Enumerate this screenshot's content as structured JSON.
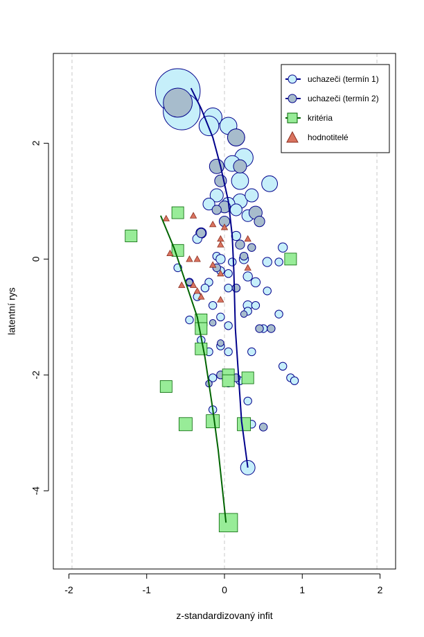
{
  "chart_data": {
    "type": "scatter",
    "title": "",
    "xlabel": "z-standardizovaný infit",
    "ylabel": "latentní rys",
    "xlim": [
      -2.2,
      2.2
    ],
    "ylim": [
      -5.35,
      3.55
    ],
    "xticks": [
      "-2",
      "-1",
      "0",
      "1",
      "2"
    ],
    "yticks": [
      "-4",
      "-2",
      "0",
      "2"
    ],
    "reference_lines_x": [
      -1.96,
      0,
      1.96
    ],
    "legend_position": "top-right",
    "legend": [
      {
        "label": "uchazeči (termín 1)",
        "symbol": "circle-line",
        "fill": "#c6effa",
        "stroke": "#00008b"
      },
      {
        "label": "uchazeči (termín 2)",
        "symbol": "circle-line",
        "fill": "#a7bccc",
        "stroke": "#00008b"
      },
      {
        "label": "kritéria",
        "symbol": "square-line",
        "fill": "#98ec98",
        "stroke": "#006400"
      },
      {
        "label": "hodnotitelé",
        "symbol": "triangle",
        "fill": "#d9735f",
        "stroke": "#8b2e1f"
      }
    ],
    "series": [
      {
        "name": "uchazeči (termín 1)",
        "color": "#c6effa",
        "edge": "#00008b",
        "points": [
          [
            -0.6,
            2.9,
            3.4
          ],
          [
            -0.55,
            2.55,
            2.8
          ],
          [
            -0.15,
            2.45,
            1.4
          ],
          [
            0.05,
            2.3,
            1.3
          ],
          [
            -0.2,
            2.3,
            1.5
          ],
          [
            0.15,
            2.1,
            1.3
          ],
          [
            0.25,
            1.75,
            1.4
          ],
          [
            0.1,
            1.65,
            1.2
          ],
          [
            0.2,
            1.35,
            1.3
          ],
          [
            0.58,
            1.3,
            1.2
          ],
          [
            -0.1,
            1.1,
            1.0
          ],
          [
            0.2,
            1.0,
            1.1
          ],
          [
            0.35,
            1.1,
            1.0
          ],
          [
            0.05,
            0.95,
            1.0
          ],
          [
            -0.2,
            0.95,
            0.9
          ],
          [
            0.15,
            0.85,
            0.9
          ],
          [
            0.3,
            0.75,
            0.9
          ],
          [
            -0.3,
            0.45,
            0.8
          ],
          [
            0.15,
            0.4,
            0.7
          ],
          [
            -0.35,
            0.35,
            0.7
          ],
          [
            0.75,
            0.2,
            0.7
          ],
          [
            -0.1,
            0.05,
            0.6
          ],
          [
            -0.05,
            0.0,
            0.7
          ],
          [
            0.25,
            0.0,
            0.7
          ],
          [
            0.55,
            -0.05,
            0.7
          ],
          [
            0.1,
            -0.05,
            0.6
          ],
          [
            0.7,
            -0.05,
            0.6
          ],
          [
            -0.05,
            -0.2,
            0.6
          ],
          [
            0.05,
            -0.25,
            0.6
          ],
          [
            -0.6,
            -0.15,
            0.6
          ],
          [
            0.3,
            -0.3,
            0.7
          ],
          [
            0.4,
            -0.4,
            0.7
          ],
          [
            -0.45,
            -0.4,
            0.6
          ],
          [
            -0.2,
            -0.4,
            0.6
          ],
          [
            0.05,
            -0.5,
            0.6
          ],
          [
            -0.25,
            -0.5,
            0.6
          ],
          [
            0.15,
            -0.5,
            0.6
          ],
          [
            0.55,
            -0.55,
            0.6
          ],
          [
            -0.35,
            -0.65,
            0.6
          ],
          [
            0.3,
            -0.8,
            0.7
          ],
          [
            0.4,
            -0.8,
            0.6
          ],
          [
            -0.15,
            -0.8,
            0.6
          ],
          [
            0.3,
            -0.9,
            0.6
          ],
          [
            0.7,
            -0.95,
            0.6
          ],
          [
            -0.05,
            -1.0,
            0.6
          ],
          [
            -0.45,
            -1.05,
            0.6
          ],
          [
            0.05,
            -1.15,
            0.6
          ],
          [
            0.5,
            -1.2,
            0.6
          ],
          [
            -0.3,
            -1.4,
            0.6
          ],
          [
            -0.05,
            -1.5,
            0.6
          ],
          [
            -0.2,
            -1.6,
            0.6
          ],
          [
            0.05,
            -1.6,
            0.6
          ],
          [
            0.35,
            -1.6,
            0.6
          ],
          [
            0.75,
            -1.85,
            0.6
          ],
          [
            0.85,
            -2.05,
            0.6
          ],
          [
            0.9,
            -2.1,
            0.6
          ],
          [
            -0.15,
            -2.05,
            0.6
          ],
          [
            0.2,
            -2.1,
            0.6
          ],
          [
            0.3,
            -2.45,
            0.6
          ],
          [
            -0.15,
            -2.6,
            0.6
          ],
          [
            0.35,
            -2.85,
            0.6
          ],
          [
            0.3,
            -3.6,
            1.1
          ]
        ]
      },
      {
        "name": "uchazeči (termín 2)",
        "color": "#a7bccc",
        "edge": "#00008b",
        "points": [
          [
            -0.6,
            2.7,
            2.2
          ],
          [
            0.15,
            2.1,
            1.3
          ],
          [
            -0.1,
            1.6,
            1.1
          ],
          [
            0.2,
            1.6,
            1.0
          ],
          [
            -0.05,
            1.35,
            0.9
          ],
          [
            0.0,
            0.9,
            0.9
          ],
          [
            0.4,
            0.8,
            1.0
          ],
          [
            -0.1,
            0.85,
            0.7
          ],
          [
            0.0,
            0.65,
            0.8
          ],
          [
            0.45,
            0.65,
            0.8
          ],
          [
            -0.3,
            0.45,
            0.7
          ],
          [
            0.2,
            0.25,
            0.7
          ],
          [
            0.35,
            0.2,
            0.6
          ],
          [
            0.25,
            0.05,
            0.6
          ],
          [
            -0.1,
            -0.15,
            0.6
          ],
          [
            0.15,
            -0.5,
            0.6
          ],
          [
            -0.45,
            -0.4,
            0.5
          ],
          [
            0.25,
            -0.95,
            0.5
          ],
          [
            0.45,
            -1.2,
            0.6
          ],
          [
            0.6,
            -1.2,
            0.6
          ],
          [
            -0.15,
            -1.1,
            0.5
          ],
          [
            -0.05,
            -1.45,
            0.5
          ],
          [
            -0.05,
            -2.0,
            0.6
          ],
          [
            0.15,
            -2.05,
            0.6
          ],
          [
            -0.2,
            -2.15,
            0.5
          ],
          [
            0.05,
            -2.15,
            0.5
          ],
          [
            0.5,
            -2.9,
            0.6
          ]
        ]
      },
      {
        "name": "kritéria",
        "color": "#98ec98",
        "edge": "#006400",
        "points": [
          [
            -0.6,
            0.8,
            0.9
          ],
          [
            -1.2,
            0.4,
            0.9
          ],
          [
            -0.6,
            0.15,
            0.9
          ],
          [
            0.85,
            0.0,
            0.9
          ],
          [
            -0.3,
            -1.05,
            0.9
          ],
          [
            -0.3,
            -1.2,
            0.9
          ],
          [
            -0.3,
            -1.55,
            0.9
          ],
          [
            0.05,
            -2.0,
            0.9
          ],
          [
            0.05,
            -2.1,
            0.9
          ],
          [
            0.3,
            -2.05,
            0.9
          ],
          [
            -0.75,
            -2.2,
            0.9
          ],
          [
            -0.5,
            -2.85,
            1.0
          ],
          [
            -0.15,
            -2.8,
            1.0
          ],
          [
            0.25,
            -2.85,
            1.0
          ],
          [
            0.05,
            -4.55,
            1.4
          ]
        ]
      },
      {
        "name": "hodnotitelé",
        "color": "#d9735f",
        "edge": "#8b2e1f",
        "points": [
          [
            -0.75,
            0.7
          ],
          [
            -0.4,
            0.75
          ],
          [
            -0.15,
            0.6
          ],
          [
            0.0,
            0.55
          ],
          [
            0.3,
            0.35
          ],
          [
            -0.05,
            0.35
          ],
          [
            -0.05,
            0.25
          ],
          [
            -0.7,
            0.1
          ],
          [
            -0.15,
            -0.1
          ],
          [
            0.3,
            -0.15
          ],
          [
            -0.45,
            0.0
          ],
          [
            -0.35,
            0.0
          ],
          [
            -0.05,
            -0.25
          ],
          [
            -0.55,
            -0.45
          ],
          [
            -0.4,
            -0.45
          ],
          [
            -0.35,
            -0.55
          ],
          [
            -0.3,
            -0.65
          ],
          [
            -0.05,
            -0.7
          ]
        ]
      }
    ],
    "trend_lines": [
      {
        "name": "uchazeči",
        "color": "#00008b",
        "points": [
          [
            -0.43,
            2.95
          ],
          [
            -0.3,
            2.6
          ],
          [
            -0.15,
            2.1
          ],
          [
            -0.05,
            1.6
          ],
          [
            0.05,
            1.0
          ],
          [
            0.1,
            0.4
          ],
          [
            0.12,
            -0.2
          ],
          [
            0.14,
            -1.2
          ],
          [
            0.18,
            -2.0
          ],
          [
            0.22,
            -2.8
          ],
          [
            0.3,
            -3.6
          ]
        ]
      },
      {
        "name": "kritéria",
        "color": "#006400",
        "points": [
          [
            -0.82,
            0.75
          ],
          [
            -0.65,
            0.2
          ],
          [
            -0.5,
            -0.4
          ],
          [
            -0.35,
            -1.0
          ],
          [
            -0.25,
            -1.7
          ],
          [
            -0.15,
            -2.6
          ],
          [
            -0.08,
            -3.3
          ],
          [
            0.02,
            -4.55
          ]
        ]
      }
    ]
  }
}
